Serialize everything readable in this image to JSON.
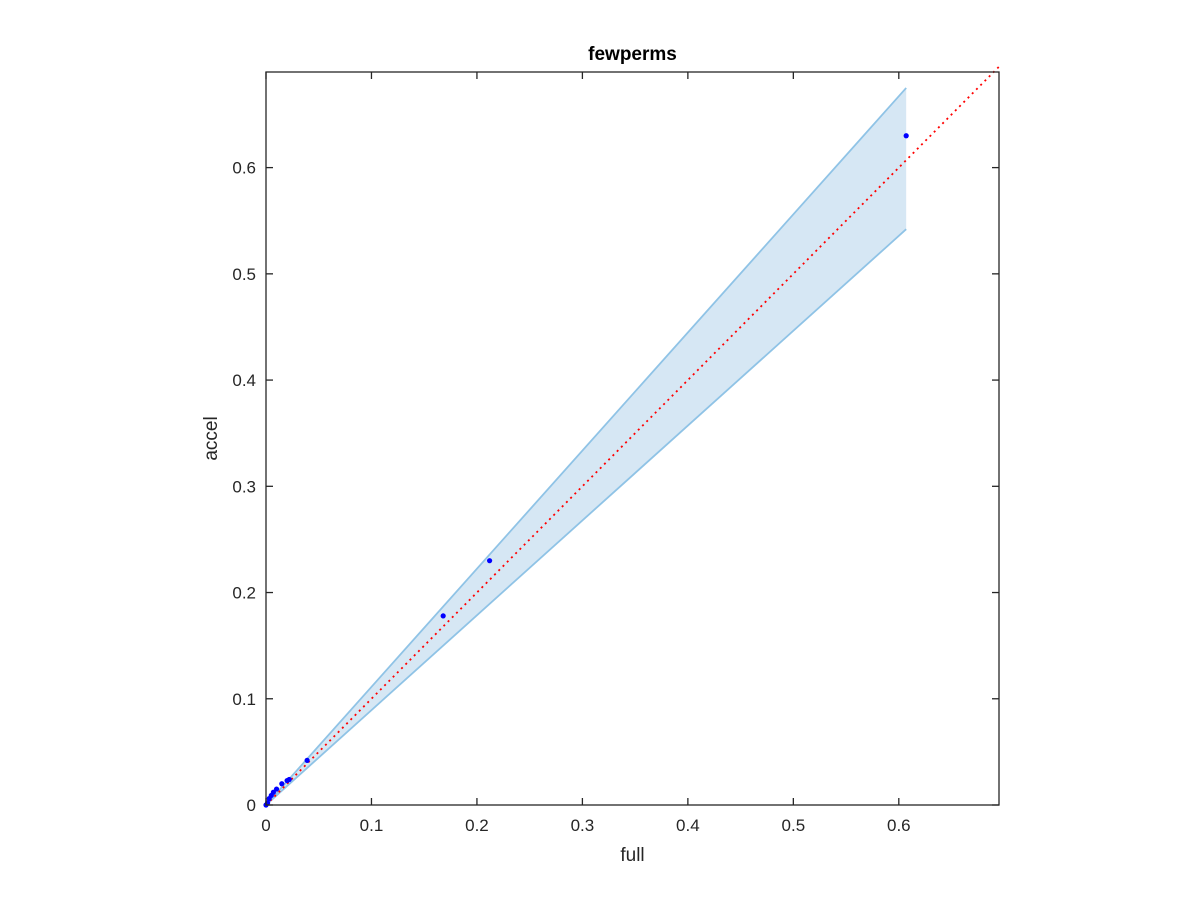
{
  "chart_data": {
    "type": "scatter",
    "title": "fewperms",
    "xlabel": "full",
    "ylabel": "accel",
    "xlim": [
      0,
      0.695
    ],
    "ylim": [
      0,
      0.69
    ],
    "xticks": [
      0,
      0.1,
      0.2,
      0.3,
      0.4,
      0.5,
      0.6
    ],
    "xtick_labels": [
      "0",
      "0.1",
      "0.2",
      "0.3",
      "0.4",
      "0.5",
      "0.6"
    ],
    "yticks": [
      0,
      0.1,
      0.2,
      0.3,
      0.4,
      0.5,
      0.6
    ],
    "ytick_labels": [
      "0",
      "0.1",
      "0.2",
      "0.3",
      "0.4",
      "0.5",
      "0.6"
    ],
    "grid": false,
    "points": {
      "x": [
        0.0,
        0.0015,
        0.003,
        0.005,
        0.007,
        0.01,
        0.015,
        0.02,
        0.022,
        0.039,
        0.168,
        0.212,
        0.607
      ],
      "y": [
        0.0,
        0.002,
        0.006,
        0.009,
        0.012,
        0.015,
        0.02,
        0.023,
        0.024,
        0.042,
        0.178,
        0.23,
        0.63
      ],
      "color": "#0000ff"
    },
    "reference_line": {
      "x": [
        0,
        0.695
      ],
      "y": [
        0,
        0.695
      ],
      "color": "#ff0000",
      "style": "dotted"
    },
    "confidence_band": {
      "x": [
        0,
        0.607
      ],
      "upper": [
        0,
        0.675
      ],
      "lower": [
        0,
        0.542
      ],
      "fill_color": "#d6e7f4",
      "edge_color": "#8fc3e6"
    },
    "colors": {
      "axis": "#262626",
      "points": "#0000ff",
      "reference": "#ff0000",
      "band_fill": "#d6e7f4",
      "band_edge": "#8fc3e6"
    }
  }
}
